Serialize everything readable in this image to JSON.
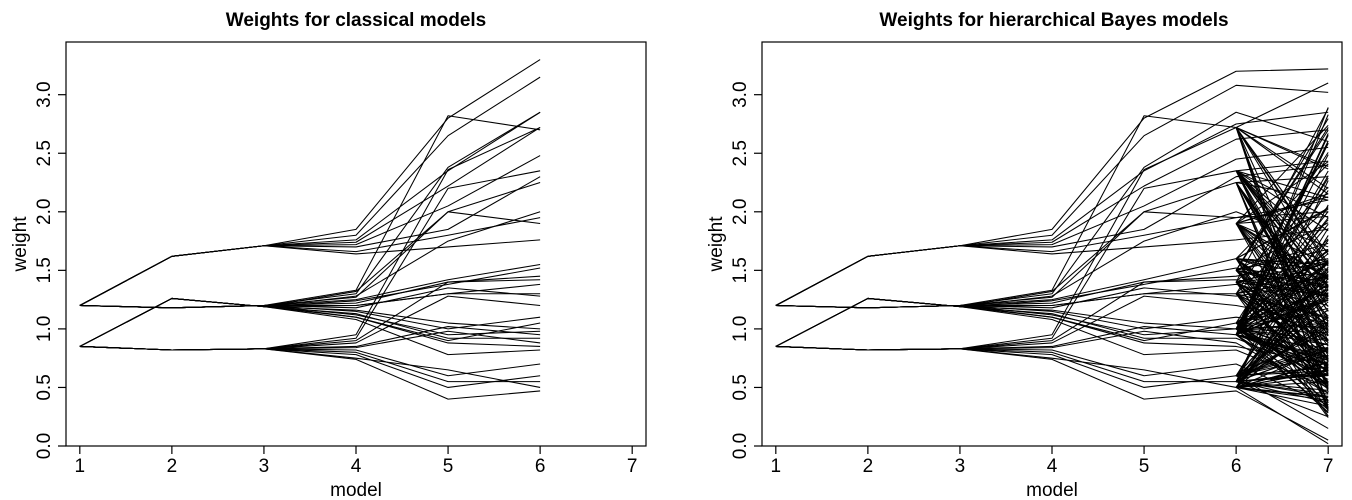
{
  "chart_data": [
    {
      "type": "line",
      "title": "Weights for classical models",
      "xlabel": "model",
      "ylabel": "weight",
      "x": [
        1,
        2,
        3,
        4,
        5,
        6
      ],
      "xticks": [
        "1",
        "2",
        "3",
        "4",
        "5",
        "6",
        "7"
      ],
      "yticks": [
        "0.0",
        "0.5",
        "1.0",
        "1.5",
        "2.0",
        "2.5",
        "3.0"
      ],
      "xlim": [
        0.85,
        7.15
      ],
      "ylim": [
        0.0,
        3.45
      ],
      "grid": false,
      "series": [
        {
          "values": [
            1.2,
            1.62,
            1.71,
            1.85,
            2.8,
            3.3
          ]
        },
        {
          "values": [
            1.2,
            1.62,
            1.71,
            1.8,
            2.65,
            3.15
          ]
        },
        {
          "values": [
            1.2,
            1.62,
            1.71,
            1.76,
            2.35,
            2.85
          ]
        },
        {
          "values": [
            1.2,
            1.62,
            1.71,
            1.74,
            2.22,
            2.72
          ]
        },
        {
          "values": [
            1.2,
            1.62,
            1.71,
            1.72,
            2.05,
            2.48
          ]
        },
        {
          "values": [
            1.2,
            1.62,
            1.71,
            1.7,
            1.85,
            2.3
          ]
        },
        {
          "values": [
            1.2,
            1.62,
            1.71,
            1.66,
            1.8,
            1.95
          ]
        },
        {
          "values": [
            1.2,
            1.62,
            1.71,
            1.64,
            1.7,
            1.76
          ]
        },
        {
          "values": [
            1.2,
            1.18,
            1.2,
            1.33,
            2.82,
            2.7
          ]
        },
        {
          "values": [
            1.2,
            1.18,
            1.2,
            1.3,
            2.38,
            2.85
          ]
        },
        {
          "values": [
            1.2,
            1.18,
            1.2,
            1.27,
            2.0,
            2.25
          ]
        },
        {
          "values": [
            1.2,
            1.18,
            1.2,
            1.25,
            1.42,
            1.55
          ]
        },
        {
          "values": [
            1.2,
            1.18,
            1.2,
            1.22,
            1.4,
            1.45
          ]
        },
        {
          "values": [
            1.2,
            1.18,
            1.2,
            1.2,
            1.3,
            1.38
          ]
        },
        {
          "values": [
            1.2,
            1.18,
            1.2,
            1.18,
            1.35,
            1.28
          ]
        },
        {
          "values": [
            1.2,
            1.18,
            1.2,
            1.15,
            1.0,
            1.1
          ]
        },
        {
          "values": [
            1.2,
            1.18,
            1.2,
            1.12,
            0.95,
            0.98
          ]
        },
        {
          "values": [
            1.2,
            1.18,
            1.2,
            1.1,
            0.88,
            0.85
          ]
        },
        {
          "values": [
            0.85,
            1.26,
            1.19,
            1.32,
            2.0,
            1.9
          ]
        },
        {
          "values": [
            0.85,
            1.26,
            1.19,
            1.28,
            1.75,
            2.0
          ]
        },
        {
          "values": [
            0.85,
            1.26,
            1.19,
            1.24,
            1.38,
            1.52
          ]
        },
        {
          "values": [
            0.85,
            1.26,
            1.19,
            1.2,
            1.3,
            1.3
          ]
        },
        {
          "values": [
            0.85,
            1.26,
            1.19,
            1.16,
            1.05,
            1.0
          ]
        },
        {
          "values": [
            0.85,
            1.26,
            1.19,
            1.13,
            0.92,
            0.92
          ]
        },
        {
          "values": [
            0.85,
            1.26,
            1.19,
            1.1,
            0.9,
            1.05
          ]
        },
        {
          "values": [
            0.85,
            1.26,
            1.19,
            1.08,
            0.78,
            0.82
          ]
        },
        {
          "values": [
            0.85,
            0.82,
            0.83,
            0.95,
            2.36,
            2.72
          ]
        },
        {
          "values": [
            0.85,
            0.82,
            0.83,
            0.92,
            2.2,
            2.35
          ]
        },
        {
          "values": [
            0.85,
            0.82,
            0.83,
            0.9,
            1.4,
            1.42
          ]
        },
        {
          "values": [
            0.85,
            0.82,
            0.83,
            0.88,
            1.28,
            1.2
          ]
        },
        {
          "values": [
            0.85,
            0.82,
            0.83,
            0.85,
            1.02,
            0.95
          ]
        },
        {
          "values": [
            0.85,
            0.82,
            0.83,
            0.84,
            0.98,
            0.88
          ]
        },
        {
          "values": [
            0.85,
            0.82,
            0.83,
            0.82,
            0.6,
            0.7
          ]
        },
        {
          "values": [
            0.85,
            0.82,
            0.83,
            0.8,
            0.55,
            0.55
          ]
        },
        {
          "values": [
            0.85,
            0.82,
            0.83,
            0.78,
            0.5,
            0.6
          ]
        },
        {
          "values": [
            0.85,
            0.82,
            0.83,
            0.74,
            0.4,
            0.47
          ]
        },
        {
          "values": [
            0.85,
            0.82,
            0.83,
            0.75,
            0.65,
            0.5
          ]
        }
      ]
    },
    {
      "type": "line",
      "title": "Weights for hierarchical Bayes models",
      "xlabel": "model",
      "ylabel": "weight",
      "x": [
        1,
        2,
        3,
        4,
        5,
        6,
        7
      ],
      "xticks": [
        "1",
        "2",
        "3",
        "4",
        "5",
        "6",
        "7"
      ],
      "yticks": [
        "0.0",
        "0.5",
        "1.0",
        "1.5",
        "2.0",
        "2.5",
        "3.0"
      ],
      "xlim": [
        0.85,
        7.15
      ],
      "ylim": [
        0.0,
        3.45
      ],
      "grid": false,
      "series": [
        {
          "values": [
            1.2,
            1.62,
            1.71,
            1.85,
            2.8,
            3.2,
            3.22
          ]
        },
        {
          "values": [
            1.2,
            1.62,
            1.71,
            1.8,
            2.65,
            3.08,
            3.02
          ]
        },
        {
          "values": [
            1.2,
            1.62,
            1.71,
            1.76,
            2.35,
            2.75,
            2.85
          ]
        },
        {
          "values": [
            1.2,
            1.62,
            1.71,
            1.74,
            2.22,
            2.62,
            2.7
          ]
        },
        {
          "values": [
            1.2,
            1.62,
            1.71,
            1.72,
            2.05,
            2.45,
            2.55
          ]
        },
        {
          "values": [
            1.2,
            1.62,
            1.71,
            1.7,
            1.85,
            2.3,
            2.4
          ]
        },
        {
          "values": [
            1.2,
            1.62,
            1.71,
            1.66,
            1.8,
            1.95,
            2.1
          ]
        },
        {
          "values": [
            1.2,
            1.62,
            1.71,
            1.64,
            1.7,
            1.76,
            1.85
          ]
        },
        {
          "values": [
            1.2,
            1.18,
            1.2,
            1.33,
            2.82,
            2.72,
            3.1
          ]
        },
        {
          "values": [
            1.2,
            1.18,
            1.2,
            1.3,
            2.38,
            2.85,
            2.6
          ]
        },
        {
          "values": [
            1.2,
            1.18,
            1.2,
            1.27,
            2.0,
            2.25,
            2.3
          ]
        },
        {
          "values": [
            1.2,
            1.18,
            1.2,
            1.25,
            1.42,
            1.6,
            1.5
          ]
        },
        {
          "values": [
            1.2,
            1.18,
            1.2,
            1.22,
            1.4,
            1.45,
            1.6
          ]
        },
        {
          "values": [
            1.2,
            1.18,
            1.2,
            1.2,
            1.3,
            1.38,
            1.2
          ]
        },
        {
          "values": [
            1.2,
            1.18,
            1.2,
            1.18,
            1.35,
            1.28,
            1.4
          ]
        },
        {
          "values": [
            1.2,
            1.18,
            1.2,
            1.15,
            1.0,
            1.1,
            1.0
          ]
        },
        {
          "values": [
            1.2,
            1.18,
            1.2,
            1.12,
            0.95,
            1.0,
            0.9
          ]
        },
        {
          "values": [
            1.2,
            1.18,
            1.2,
            1.1,
            0.88,
            0.85,
            0.7
          ]
        },
        {
          "values": [
            0.85,
            1.26,
            1.19,
            1.32,
            2.0,
            1.95,
            2.0
          ]
        },
        {
          "values": [
            0.85,
            1.26,
            1.19,
            1.28,
            1.75,
            2.0,
            1.7
          ]
        },
        {
          "values": [
            0.85,
            1.26,
            1.19,
            1.24,
            1.38,
            1.52,
            1.4
          ]
        },
        {
          "values": [
            0.85,
            1.26,
            1.19,
            1.2,
            1.3,
            1.3,
            1.1
          ]
        },
        {
          "values": [
            0.85,
            1.26,
            1.19,
            1.16,
            1.05,
            1.0,
            0.8
          ]
        },
        {
          "values": [
            0.85,
            1.26,
            1.19,
            1.13,
            0.92,
            0.92,
            0.6
          ]
        },
        {
          "values": [
            0.85,
            1.26,
            1.19,
            1.1,
            0.9,
            1.05,
            1.25
          ]
        },
        {
          "values": [
            0.85,
            1.26,
            1.19,
            1.08,
            0.78,
            0.82,
            0.5
          ]
        },
        {
          "values": [
            0.85,
            0.82,
            0.83,
            0.95,
            2.36,
            2.72,
            2.2
          ]
        },
        {
          "values": [
            0.85,
            0.82,
            0.83,
            0.92,
            2.2,
            2.35,
            1.95
          ]
        },
        {
          "values": [
            0.85,
            0.82,
            0.83,
            0.9,
            1.4,
            1.42,
            1.3
          ]
        },
        {
          "values": [
            0.85,
            0.82,
            0.83,
            0.88,
            1.28,
            1.2,
            1.05
          ]
        },
        {
          "values": [
            0.85,
            0.82,
            0.83,
            0.85,
            1.02,
            0.95,
            0.75
          ]
        },
        {
          "values": [
            0.85,
            0.82,
            0.83,
            0.84,
            0.98,
            0.88,
            0.45
          ]
        },
        {
          "values": [
            0.85,
            0.82,
            0.83,
            0.82,
            0.6,
            0.7,
            0.35
          ]
        },
        {
          "values": [
            0.85,
            0.82,
            0.83,
            0.8,
            0.55,
            0.55,
            0.25
          ]
        },
        {
          "values": [
            0.85,
            0.82,
            0.83,
            0.78,
            0.5,
            0.6,
            0.15
          ]
        },
        {
          "values": [
            0.85,
            0.82,
            0.83,
            0.74,
            0.4,
            0.47,
            0.05
          ]
        },
        {
          "values": [
            0.85,
            0.82,
            0.83,
            0.75,
            0.65,
            0.5,
            0.02
          ]
        }
      ],
      "fan_from_model_6": {
        "description_levels": [
          0.5,
          0.55,
          0.6,
          0.95,
          1.0,
          1.05,
          1.3,
          1.4,
          1.5,
          1.6,
          1.9,
          2.25,
          2.35,
          2.72
        ],
        "model_7_range": [
          0.0,
          2.9
        ]
      }
    }
  ]
}
